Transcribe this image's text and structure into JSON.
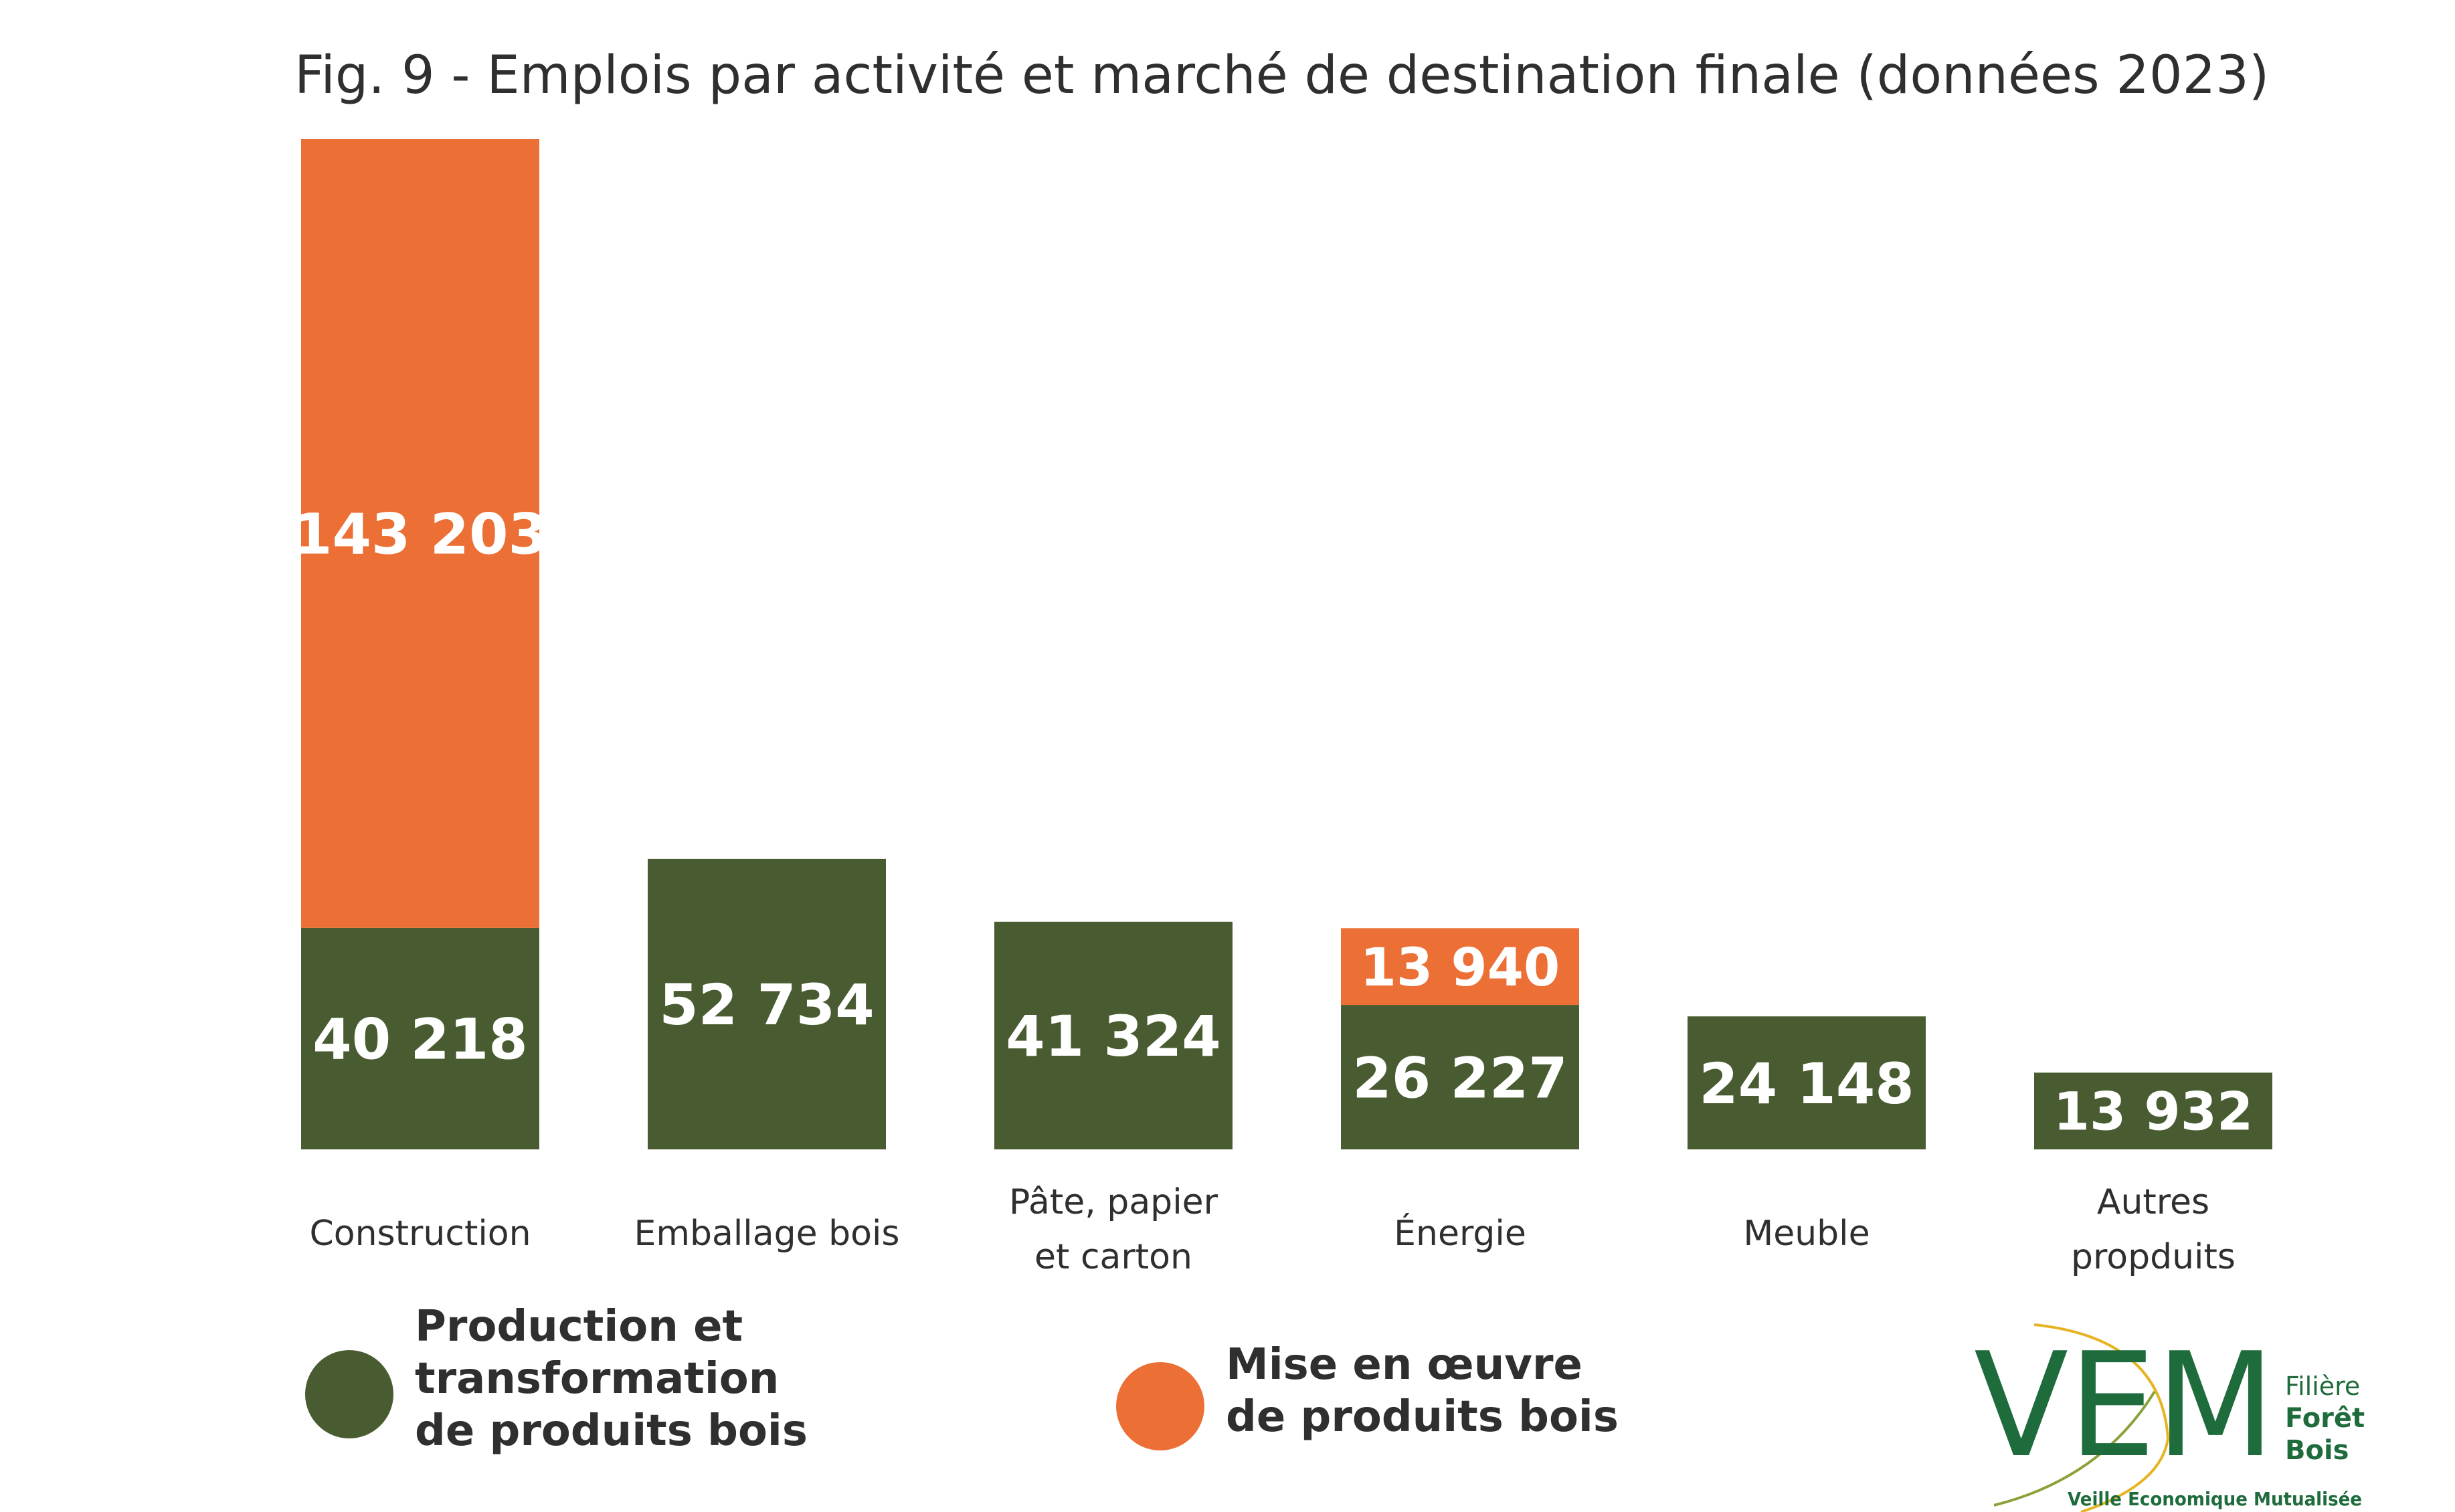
{
  "chart_data": {
    "type": "bar",
    "stacked": true,
    "title": "Fig. 9 - Emplois par activité et marché de destination finale (données 2023)",
    "categories": [
      [
        "Construction"
      ],
      [
        "Emballage bois"
      ],
      [
        "Pâte, papier",
        "et carton"
      ],
      [
        "Énergie"
      ],
      [
        "Meuble"
      ],
      [
        "Autres",
        "propduits"
      ]
    ],
    "series": [
      {
        "name": "Production et transformation de produits bois",
        "legend_lines": [
          "Production et transformation",
          "de produits bois"
        ],
        "color": "#495c31",
        "values": [
          40218,
          52734,
          41324,
          26227,
          24148,
          13932
        ],
        "labels": [
          "40 218",
          "52 734",
          "41 324",
          "26 227",
          "24 148",
          "13 932"
        ]
      },
      {
        "name": "Mise en œuvre de produits bois",
        "legend_lines": [
          "Mise en œuvre",
          "de produits bois"
        ],
        "color": "#ec6f35",
        "values": [
          143203,
          0,
          0,
          13940,
          0,
          0
        ],
        "labels": [
          "143 203",
          "",
          "",
          "13 940",
          "",
          ""
        ]
      }
    ],
    "ylim": [
      0,
      183421
    ],
    "grid": false,
    "legend": "bottom"
  },
  "logo": {
    "letters": "VEM",
    "line1": "Filière",
    "line2": "Forêt",
    "line3": "Bois",
    "tagline": "Veille Economique Mutualisée",
    "colors": {
      "green": "#1e6b3c",
      "gold": "#e6b422",
      "olive": "#8aa23a"
    }
  }
}
